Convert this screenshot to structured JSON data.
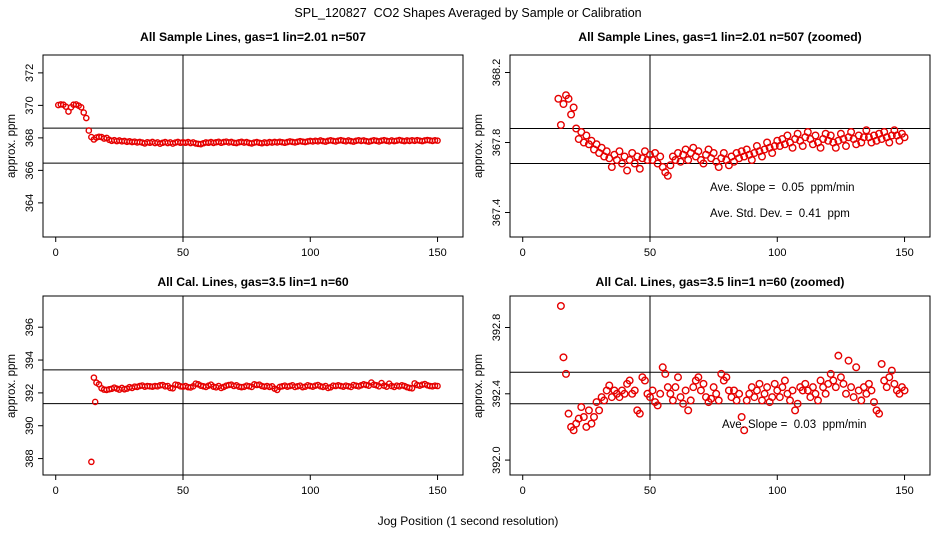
{
  "figure": {
    "title": "SPL_120827  CO2 Shapes Averaged by Sample or Calibration",
    "xlabel": "Jog Position (1 second resolution)",
    "background": "#ffffff",
    "point_color": "#e60000",
    "line_color": "#000000"
  },
  "annotations": {
    "sample_slope": "Ave. Slope =  0.05  ppm/min",
    "sample_stddev": "Ave. Std. Dev. =  0.41  ppm",
    "cal_slope": "Ave. Slope =  0.03  ppm/min"
  },
  "series": {
    "sample": {
      "x": [
        1,
        2,
        3,
        4,
        5,
        6,
        7,
        8,
        9,
        10,
        11,
        12,
        13,
        14,
        15,
        16,
        17,
        18,
        19,
        20,
        21,
        22,
        23,
        24,
        25,
        26,
        27,
        28,
        29,
        30,
        31,
        32,
        33,
        34,
        35,
        36,
        37,
        38,
        39,
        40,
        41,
        42,
        43,
        44,
        45,
        46,
        47,
        48,
        49,
        50,
        51,
        52,
        53,
        54,
        55,
        56,
        57,
        58,
        59,
        60,
        61,
        62,
        63,
        64,
        65,
        66,
        67,
        68,
        69,
        70,
        71,
        72,
        73,
        74,
        75,
        76,
        77,
        78,
        79,
        80,
        81,
        82,
        83,
        84,
        85,
        86,
        87,
        88,
        89,
        90,
        91,
        92,
        93,
        94,
        95,
        96,
        97,
        98,
        99,
        100,
        101,
        102,
        103,
        104,
        105,
        106,
        107,
        108,
        109,
        110,
        111,
        112,
        113,
        114,
        115,
        116,
        117,
        118,
        119,
        120,
        121,
        122,
        123,
        124,
        125,
        126,
        127,
        128,
        129,
        130,
        131,
        132,
        133,
        134,
        135,
        136,
        137,
        138,
        139,
        140,
        141,
        142,
        143,
        144,
        145,
        146,
        147,
        148,
        149,
        150
      ],
      "y": [
        370.02,
        370.06,
        370.04,
        369.92,
        369.62,
        369.88,
        370.04,
        370.06,
        369.98,
        369.88,
        369.56,
        369.22,
        368.45,
        368.05,
        367.9,
        368.02,
        368.07,
        368.05,
        367.96,
        368.0,
        367.88,
        367.82,
        367.86,
        367.8,
        367.84,
        367.79,
        367.81,
        367.76,
        367.79,
        367.74,
        367.77,
        367.72,
        367.75,
        367.71,
        367.66,
        367.73,
        367.7,
        367.75,
        367.68,
        367.72,
        367.64,
        367.7,
        367.74,
        367.68,
        367.72,
        367.65,
        367.71,
        367.75,
        367.7,
        367.73,
        367.7,
        367.74,
        367.68,
        367.72,
        367.66,
        367.63,
        367.61,
        367.67,
        367.72,
        367.7,
        367.74,
        367.69,
        367.73,
        367.76,
        367.7,
        367.74,
        367.77,
        367.72,
        367.75,
        367.7,
        367.68,
        367.73,
        367.76,
        367.71,
        367.74,
        367.69,
        367.66,
        367.71,
        367.74,
        367.7,
        367.67,
        367.72,
        367.69,
        367.74,
        367.71,
        367.75,
        367.72,
        367.76,
        367.73,
        367.7,
        367.74,
        367.78,
        367.75,
        367.72,
        367.76,
        367.8,
        367.77,
        367.74,
        367.78,
        367.81,
        367.78,
        367.82,
        367.79,
        367.84,
        367.8,
        367.77,
        367.82,
        367.85,
        367.81,
        367.78,
        367.83,
        367.86,
        367.82,
        367.79,
        367.84,
        367.8,
        367.77,
        367.82,
        367.85,
        367.81,
        367.84,
        367.8,
        367.77,
        367.81,
        367.85,
        367.82,
        367.78,
        367.83,
        367.86,
        367.82,
        367.79,
        367.84,
        367.8,
        367.83,
        367.87,
        367.83,
        367.8,
        367.84,
        367.81,
        367.85,
        367.82,
        367.86,
        367.83,
        367.8,
        367.84,
        367.87,
        367.84,
        367.81,
        367.85,
        367.83
      ]
    },
    "cal": {
      "x": [
        14,
        15,
        15.5,
        16,
        17,
        18,
        19,
        20,
        21,
        22,
        23,
        24,
        25,
        26,
        27,
        28,
        29,
        30,
        31,
        32,
        33,
        34,
        35,
        36,
        37,
        38,
        39,
        40,
        41,
        42,
        43,
        44,
        45,
        46,
        47,
        48,
        49,
        50,
        51,
        52,
        53,
        54,
        55,
        56,
        57,
        58,
        59,
        60,
        61,
        62,
        63,
        64,
        65,
        66,
        67,
        68,
        69,
        70,
        71,
        72,
        73,
        74,
        75,
        76,
        77,
        78,
        79,
        80,
        81,
        82,
        83,
        84,
        85,
        86,
        87,
        88,
        89,
        90,
        91,
        92,
        93,
        94,
        95,
        96,
        97,
        98,
        99,
        100,
        101,
        102,
        103,
        104,
        105,
        106,
        107,
        108,
        109,
        110,
        111,
        112,
        113,
        114,
        115,
        116,
        117,
        118,
        119,
        120,
        121,
        122,
        123,
        124,
        125,
        126,
        127,
        128,
        129,
        130,
        131,
        132,
        133,
        134,
        135,
        136,
        137,
        138,
        139,
        140,
        141,
        142,
        143,
        144,
        145,
        146,
        147,
        148,
        149,
        150
      ],
      "y": [
        387.8,
        392.93,
        391.45,
        392.62,
        392.52,
        392.28,
        392.2,
        392.18,
        392.22,
        392.25,
        392.32,
        392.26,
        392.2,
        392.3,
        392.22,
        392.26,
        392.35,
        392.3,
        392.38,
        392.36,
        392.42,
        392.45,
        392.38,
        392.42,
        392.4,
        392.38,
        392.42,
        392.4,
        392.46,
        392.48,
        392.4,
        392.42,
        392.3,
        392.28,
        392.5,
        392.48,
        392.4,
        392.38,
        392.42,
        392.35,
        392.33,
        392.4,
        392.56,
        392.52,
        392.44,
        392.4,
        392.36,
        392.44,
        392.5,
        392.38,
        392.34,
        392.42,
        392.3,
        392.36,
        392.44,
        392.48,
        392.5,
        392.42,
        392.46,
        392.38,
        392.35,
        392.37,
        392.44,
        392.4,
        392.36,
        392.52,
        392.48,
        392.5,
        392.42,
        392.38,
        392.42,
        392.36,
        392.4,
        392.26,
        392.18,
        392.36,
        392.4,
        392.44,
        392.38,
        392.42,
        392.46,
        392.36,
        392.4,
        392.44,
        392.35,
        392.38,
        392.46,
        392.42,
        392.38,
        392.44,
        392.48,
        392.4,
        392.36,
        392.42,
        392.3,
        392.34,
        392.44,
        392.42,
        392.46,
        392.42,
        392.38,
        392.44,
        392.4,
        392.36,
        392.48,
        392.44,
        392.4,
        392.46,
        392.52,
        392.48,
        392.44,
        392.63,
        392.5,
        392.46,
        392.4,
        392.6,
        392.44,
        392.38,
        392.56,
        392.42,
        392.36,
        392.44,
        392.4,
        392.46,
        392.42,
        392.35,
        392.3,
        392.28,
        392.58,
        392.48,
        392.44,
        392.5,
        392.54,
        392.46,
        392.42,
        392.4,
        392.44,
        392.42
      ]
    }
  },
  "chart_data": [
    {
      "type": "scatter",
      "title": "All Sample Lines, gas=1 lin=2.01 n=507",
      "ylabel": "approx. ppm",
      "series": "sample",
      "xlim": [
        -5,
        160
      ],
      "ylim": [
        361.9,
        373.1
      ],
      "xticks": [
        0,
        50,
        100,
        150
      ],
      "xtick_labels": [
        "0",
        "50",
        "100",
        "150"
      ],
      "yticks": [
        364,
        366,
        368,
        370,
        372
      ],
      "ytick_labels": [
        "364",
        "366",
        "368",
        "370",
        "372"
      ],
      "vline_x": 50,
      "hlines": [
        368.6,
        366.45
      ],
      "marker_r": 2.6
    },
    {
      "type": "scatter",
      "title": "All Sample Lines, gas=1 lin=2.01 n=507 (zoomed)",
      "ylabel": "approx. ppm",
      "series": "sample",
      "xlim": [
        -5,
        160
      ],
      "ylim": [
        367.26,
        368.3
      ],
      "xticks": [
        0,
        50,
        100,
        150
      ],
      "xtick_labels": [
        "0",
        "50",
        "100",
        "150"
      ],
      "yticks": [
        367.4,
        367.8,
        368.2
      ],
      "ytick_labels": [
        "367.4",
        "367.8",
        "368.2"
      ],
      "vline_x": 50,
      "hlines": [
        367.88,
        367.68
      ],
      "marker_r": 3.3
    },
    {
      "type": "scatter",
      "title": "All Cal. Lines, gas=3.5 lin=1 n=60",
      "ylabel": "approx. ppm",
      "series": "cal",
      "xlim": [
        -5,
        160
      ],
      "ylim": [
        387.0,
        397.9
      ],
      "xticks": [
        0,
        50,
        100,
        150
      ],
      "xtick_labels": [
        "0",
        "50",
        "100",
        "150"
      ],
      "yticks": [
        388,
        390,
        392,
        394,
        396
      ],
      "ytick_labels": [
        "388",
        "390",
        "392",
        "394",
        "396"
      ],
      "vline_x": 50,
      "hlines": [
        393.4,
        391.35
      ],
      "marker_r": 2.6
    },
    {
      "type": "scatter",
      "title": "All Cal. Lines, gas=3.5 lin=1 n=60 (zoomed)",
      "ylabel": "approx. ppm",
      "series": "cal",
      "xlim": [
        -5,
        160
      ],
      "ylim": [
        391.91,
        392.99
      ],
      "xticks": [
        0,
        50,
        100,
        150
      ],
      "xtick_labels": [
        "0",
        "50",
        "100",
        "150"
      ],
      "yticks": [
        392.0,
        392.4,
        392.8
      ],
      "ytick_labels": [
        "392.0",
        "392.4",
        "392.8"
      ],
      "vline_x": 50,
      "hlines": [
        392.53,
        392.34
      ],
      "marker_r": 3.3
    }
  ]
}
